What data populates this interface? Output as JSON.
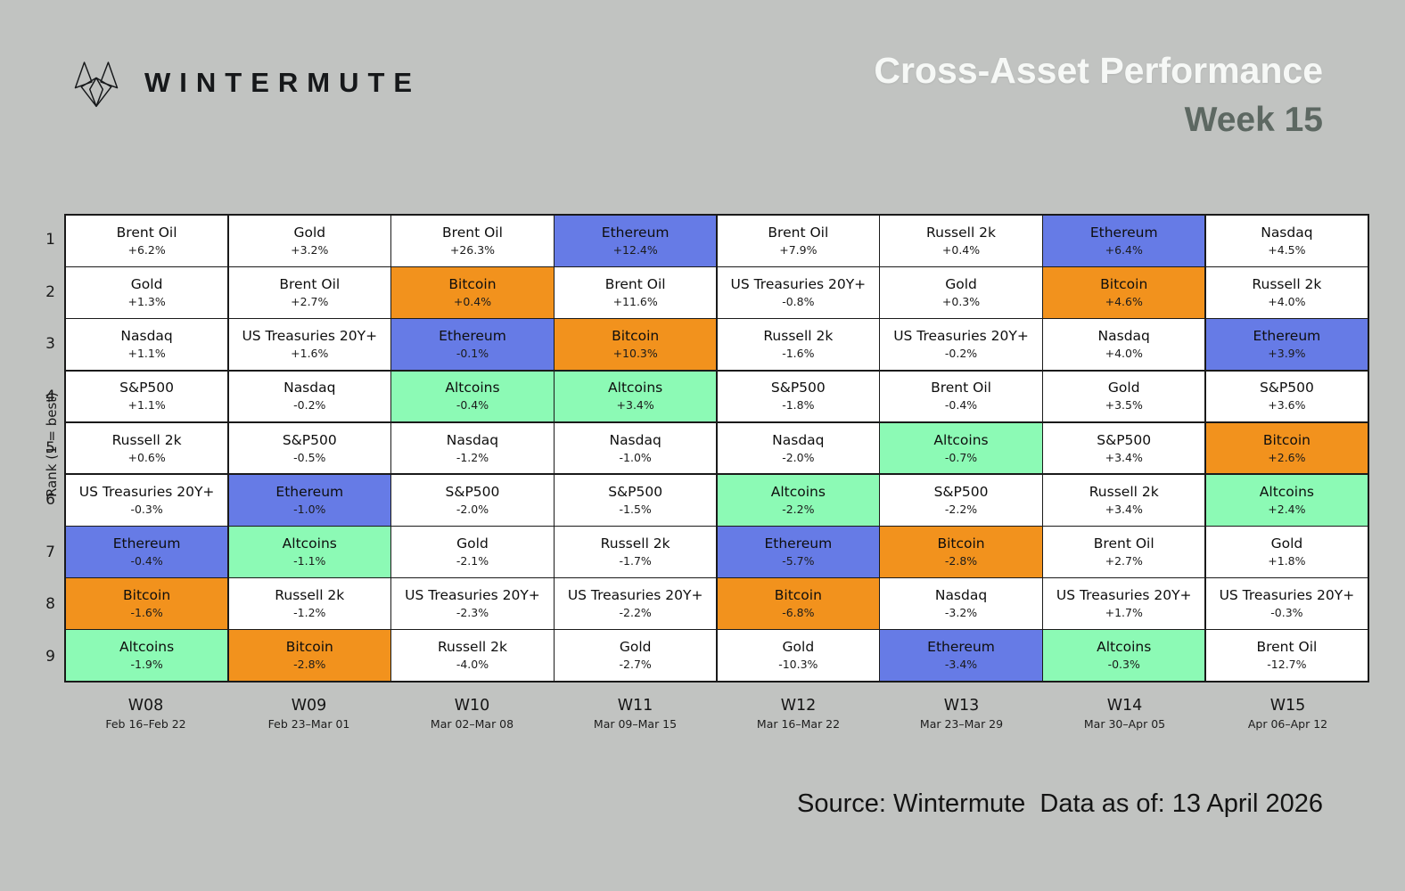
{
  "page": {
    "brand": "WINTERMUTE",
    "title": "Cross-Asset Performance",
    "subtitle": "Week 15",
    "source_note": "Source: Wintermute  Data as of: 13 April 2026"
  },
  "colors": {
    "background": "#c1c3c1",
    "ethereum": "#667be6",
    "bitcoin": "#f2921d",
    "altcoins": "#8cfab5",
    "default_cell": "#ffffff",
    "grid_line": "#1a1a1a",
    "title_text": "#f6f8f6",
    "subtitle_text": "#5d6862"
  },
  "chart_data": {
    "type": "heatmap",
    "title": "Cross-Asset Performance",
    "subtitle": "Week 15",
    "y_axis_label": "Rank (1 = best)",
    "ranks": [
      "1",
      "2",
      "3",
      "4",
      "5",
      "6",
      "7",
      "8",
      "9"
    ],
    "asset_colors": {
      "Ethereum": "#667be6",
      "Bitcoin": "#f2921d",
      "Altcoins": "#8cfab5",
      "default": "#ffffff"
    },
    "weeks": [
      {
        "label": "W08",
        "dates": "Feb 16–Feb 22",
        "cells": [
          {
            "asset": "Brent Oil",
            "value": "+6.2%"
          },
          {
            "asset": "Gold",
            "value": "+1.3%"
          },
          {
            "asset": "Nasdaq",
            "value": "+1.1%"
          },
          {
            "asset": "S&P500",
            "value": "+1.1%"
          },
          {
            "asset": "Russell 2k",
            "value": "+0.6%"
          },
          {
            "asset": "US Treasuries 20Y+",
            "value": "-0.3%"
          },
          {
            "asset": "Ethereum",
            "value": "-0.4%"
          },
          {
            "asset": "Bitcoin",
            "value": "-1.6%"
          },
          {
            "asset": "Altcoins",
            "value": "-1.9%"
          }
        ]
      },
      {
        "label": "W09",
        "dates": "Feb 23–Mar 01",
        "cells": [
          {
            "asset": "Gold",
            "value": "+3.2%"
          },
          {
            "asset": "Brent Oil",
            "value": "+2.7%"
          },
          {
            "asset": "US Treasuries 20Y+",
            "value": "+1.6%"
          },
          {
            "asset": "Nasdaq",
            "value": "-0.2%"
          },
          {
            "asset": "S&P500",
            "value": "-0.5%"
          },
          {
            "asset": "Ethereum",
            "value": "-1.0%"
          },
          {
            "asset": "Altcoins",
            "value": "-1.1%"
          },
          {
            "asset": "Russell 2k",
            "value": "-1.2%"
          },
          {
            "asset": "Bitcoin",
            "value": "-2.8%"
          }
        ]
      },
      {
        "label": "W10",
        "dates": "Mar 02–Mar 08",
        "cells": [
          {
            "asset": "Brent Oil",
            "value": "+26.3%"
          },
          {
            "asset": "Bitcoin",
            "value": "+0.4%"
          },
          {
            "asset": "Ethereum",
            "value": "-0.1%"
          },
          {
            "asset": "Altcoins",
            "value": "-0.4%"
          },
          {
            "asset": "Nasdaq",
            "value": "-1.2%"
          },
          {
            "asset": "S&P500",
            "value": "-2.0%"
          },
          {
            "asset": "Gold",
            "value": "-2.1%"
          },
          {
            "asset": "US Treasuries 20Y+",
            "value": "-2.3%"
          },
          {
            "asset": "Russell 2k",
            "value": "-4.0%"
          }
        ]
      },
      {
        "label": "W11",
        "dates": "Mar 09–Mar 15",
        "cells": [
          {
            "asset": "Ethereum",
            "value": "+12.4%"
          },
          {
            "asset": "Brent Oil",
            "value": "+11.6%"
          },
          {
            "asset": "Bitcoin",
            "value": "+10.3%"
          },
          {
            "asset": "Altcoins",
            "value": "+3.4%"
          },
          {
            "asset": "Nasdaq",
            "value": "-1.0%"
          },
          {
            "asset": "S&P500",
            "value": "-1.5%"
          },
          {
            "asset": "Russell 2k",
            "value": "-1.7%"
          },
          {
            "asset": "US Treasuries 20Y+",
            "value": "-2.2%"
          },
          {
            "asset": "Gold",
            "value": "-2.7%"
          }
        ]
      },
      {
        "label": "W12",
        "dates": "Mar 16–Mar 22",
        "cells": [
          {
            "asset": "Brent Oil",
            "value": "+7.9%"
          },
          {
            "asset": "US Treasuries 20Y+",
            "value": "-0.8%"
          },
          {
            "asset": "Russell 2k",
            "value": "-1.6%"
          },
          {
            "asset": "S&P500",
            "value": "-1.8%"
          },
          {
            "asset": "Nasdaq",
            "value": "-2.0%"
          },
          {
            "asset": "Altcoins",
            "value": "-2.2%"
          },
          {
            "asset": "Ethereum",
            "value": "-5.7%"
          },
          {
            "asset": "Bitcoin",
            "value": "-6.8%"
          },
          {
            "asset": "Gold",
            "value": "-10.3%"
          }
        ]
      },
      {
        "label": "W13",
        "dates": "Mar 23–Mar 29",
        "cells": [
          {
            "asset": "Russell 2k",
            "value": "+0.4%"
          },
          {
            "asset": "Gold",
            "value": "+0.3%"
          },
          {
            "asset": "US Treasuries 20Y+",
            "value": "-0.2%"
          },
          {
            "asset": "Brent Oil",
            "value": "-0.4%"
          },
          {
            "asset": "Altcoins",
            "value": "-0.7%"
          },
          {
            "asset": "S&P500",
            "value": "-2.2%"
          },
          {
            "asset": "Bitcoin",
            "value": "-2.8%"
          },
          {
            "asset": "Nasdaq",
            "value": "-3.2%"
          },
          {
            "asset": "Ethereum",
            "value": "-3.4%"
          }
        ]
      },
      {
        "label": "W14",
        "dates": "Mar 30–Apr 05",
        "cells": [
          {
            "asset": "Ethereum",
            "value": "+6.4%"
          },
          {
            "asset": "Bitcoin",
            "value": "+4.6%"
          },
          {
            "asset": "Nasdaq",
            "value": "+4.0%"
          },
          {
            "asset": "Gold",
            "value": "+3.5%"
          },
          {
            "asset": "S&P500",
            "value": "+3.4%"
          },
          {
            "asset": "Russell 2k",
            "value": "+3.4%"
          },
          {
            "asset": "Brent Oil",
            "value": "+2.7%"
          },
          {
            "asset": "US Treasuries 20Y+",
            "value": "+1.7%"
          },
          {
            "asset": "Altcoins",
            "value": "-0.3%"
          }
        ]
      },
      {
        "label": "W15",
        "dates": "Apr 06–Apr 12",
        "cells": [
          {
            "asset": "Nasdaq",
            "value": "+4.5%"
          },
          {
            "asset": "Russell 2k",
            "value": "+4.0%"
          },
          {
            "asset": "Ethereum",
            "value": "+3.9%"
          },
          {
            "asset": "S&P500",
            "value": "+3.6%"
          },
          {
            "asset": "Bitcoin",
            "value": "+2.6%"
          },
          {
            "asset": "Altcoins",
            "value": "+2.4%"
          },
          {
            "asset": "Gold",
            "value": "+1.8%"
          },
          {
            "asset": "US Treasuries 20Y+",
            "value": "-0.3%"
          },
          {
            "asset": "Brent Oil",
            "value": "-12.7%"
          }
        ]
      }
    ]
  }
}
